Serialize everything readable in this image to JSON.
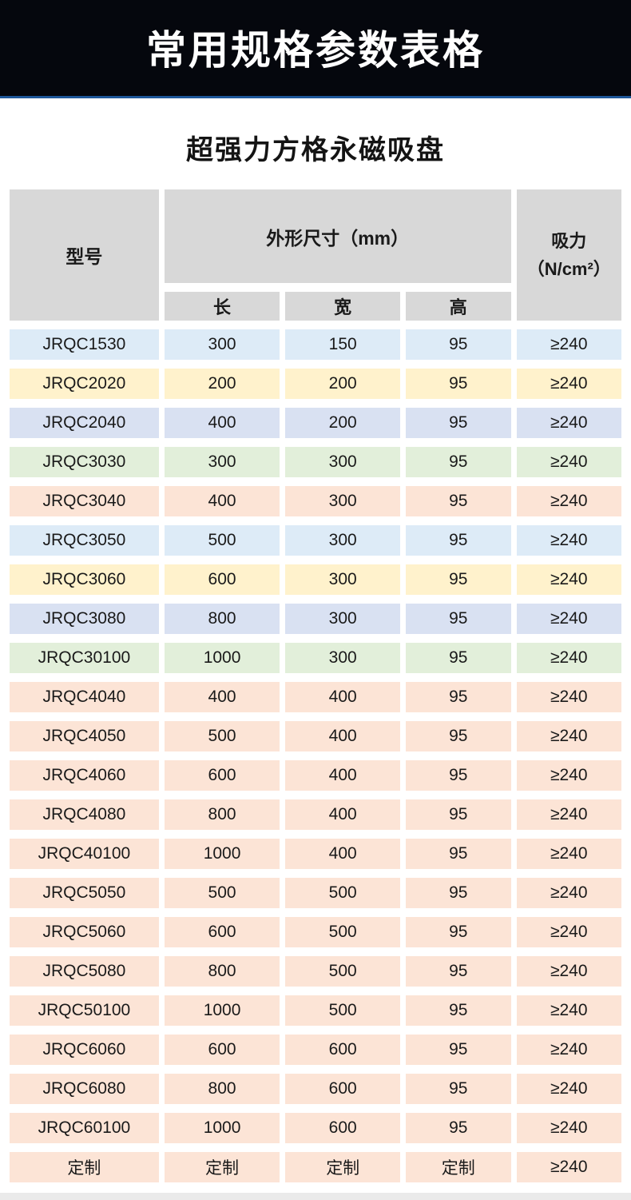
{
  "banner": {
    "title": "常用规格参数表格"
  },
  "subtitle": "超强力方格永磁吸盘",
  "table": {
    "header": {
      "model": "型号",
      "dimensions": "外形尺寸（mm）",
      "length": "长",
      "width": "宽",
      "height": "高",
      "suction_line1": "吸力",
      "suction_line2": "（N/cm²）"
    },
    "columns": [
      "model",
      "length",
      "width",
      "height",
      "suction"
    ],
    "rows": [
      {
        "model": "JRQC1530",
        "length": "300",
        "width": "150",
        "height": "95",
        "suction": "≥240",
        "color": "blue"
      },
      {
        "model": "JRQC2020",
        "length": "200",
        "width": "200",
        "height": "95",
        "suction": "≥240",
        "color": "yellow"
      },
      {
        "model": "JRQC2040",
        "length": "400",
        "width": "200",
        "height": "95",
        "suction": "≥240",
        "color": "lavender"
      },
      {
        "model": "JRQC3030",
        "length": "300",
        "width": "300",
        "height": "95",
        "suction": "≥240",
        "color": "green"
      },
      {
        "model": "JRQC3040",
        "length": "400",
        "width": "300",
        "height": "95",
        "suction": "≥240",
        "color": "peach"
      },
      {
        "model": "JRQC3050",
        "length": "500",
        "width": "300",
        "height": "95",
        "suction": "≥240",
        "color": "blue"
      },
      {
        "model": "JRQC3060",
        "length": "600",
        "width": "300",
        "height": "95",
        "suction": "≥240",
        "color": "yellow"
      },
      {
        "model": "JRQC3080",
        "length": "800",
        "width": "300",
        "height": "95",
        "suction": "≥240",
        "color": "lavender"
      },
      {
        "model": "JRQC30100",
        "length": "1000",
        "width": "300",
        "height": "95",
        "suction": "≥240",
        "color": "green"
      },
      {
        "model": "JRQC4040",
        "length": "400",
        "width": "400",
        "height": "95",
        "suction": "≥240",
        "color": "peach"
      },
      {
        "model": "JRQC4050",
        "length": "500",
        "width": "400",
        "height": "95",
        "suction": "≥240",
        "color": "peach"
      },
      {
        "model": "JRQC4060",
        "length": "600",
        "width": "400",
        "height": "95",
        "suction": "≥240",
        "color": "peach"
      },
      {
        "model": "JRQC4080",
        "length": "800",
        "width": "400",
        "height": "95",
        "suction": "≥240",
        "color": "peach"
      },
      {
        "model": "JRQC40100",
        "length": "1000",
        "width": "400",
        "height": "95",
        "suction": "≥240",
        "color": "peach"
      },
      {
        "model": "JRQC5050",
        "length": "500",
        "width": "500",
        "height": "95",
        "suction": "≥240",
        "color": "peach"
      },
      {
        "model": "JRQC5060",
        "length": "600",
        "width": "500",
        "height": "95",
        "suction": "≥240",
        "color": "peach"
      },
      {
        "model": "JRQC5080",
        "length": "800",
        "width": "500",
        "height": "95",
        "suction": "≥240",
        "color": "peach"
      },
      {
        "model": "JRQC50100",
        "length": "1000",
        "width": "500",
        "height": "95",
        "suction": "≥240",
        "color": "peach"
      },
      {
        "model": "JRQC6060",
        "length": "600",
        "width": "600",
        "height": "95",
        "suction": "≥240",
        "color": "peach"
      },
      {
        "model": "JRQC6080",
        "length": "800",
        "width": "600",
        "height": "95",
        "suction": "≥240",
        "color": "peach"
      },
      {
        "model": "JRQC60100",
        "length": "1000",
        "width": "600",
        "height": "95",
        "suction": "≥240",
        "color": "peach"
      },
      {
        "model": "定制",
        "length": "定制",
        "width": "定制",
        "height": "定制",
        "suction": "≥240",
        "color": "peach"
      }
    ]
  },
  "colors": {
    "blue": "#DDEBF7",
    "yellow": "#FFF2CC",
    "lavender": "#D9E1F2",
    "green": "#E2EFDA",
    "peach": "#FCE4D6",
    "header_gray": "#D8D8D8",
    "banner_bg": "#05070d",
    "banner_accent": "#1e5799"
  }
}
